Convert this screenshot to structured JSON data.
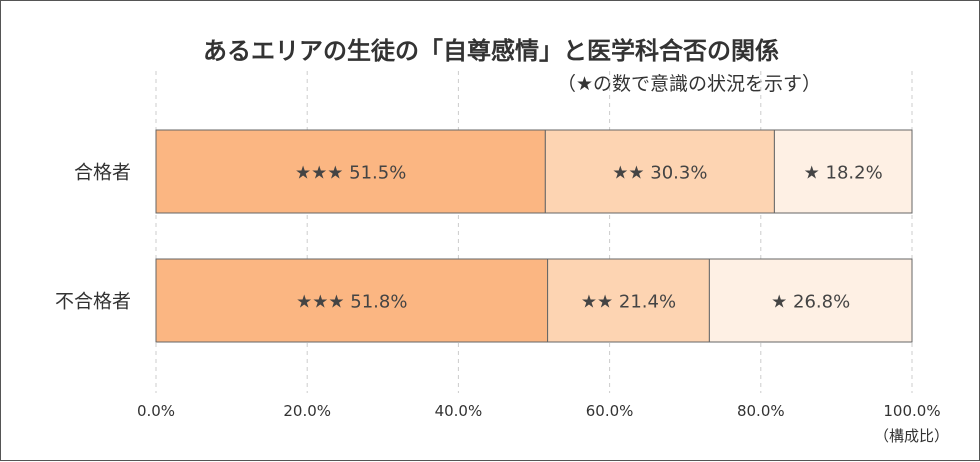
{
  "chart_data": {
    "type": "bar",
    "orientation": "horizontal",
    "stacked": true,
    "title": "あるエリアの生徒の「自尊感情」と医学科合否の関係",
    "subtitle": "（★の数で意識の状況を示す）",
    "categories": [
      "合格者",
      "不合格者"
    ],
    "series": [
      {
        "label": "★★★",
        "values": [
          51.5,
          51.8
        ],
        "color": "#fbb682"
      },
      {
        "label": "★★",
        "values": [
          30.3,
          21.4
        ],
        "color": "#fdd4b2"
      },
      {
        "label": "★",
        "values": [
          18.2,
          26.8
        ],
        "color": "#fef0e4"
      }
    ],
    "xlim": [
      0,
      100
    ],
    "xticks": [
      "0.0%",
      "20.0%",
      "40.0%",
      "60.0%",
      "80.0%",
      "100.0%"
    ],
    "x_unit_label": "（構成比）",
    "grid": "vertical-dashed"
  }
}
